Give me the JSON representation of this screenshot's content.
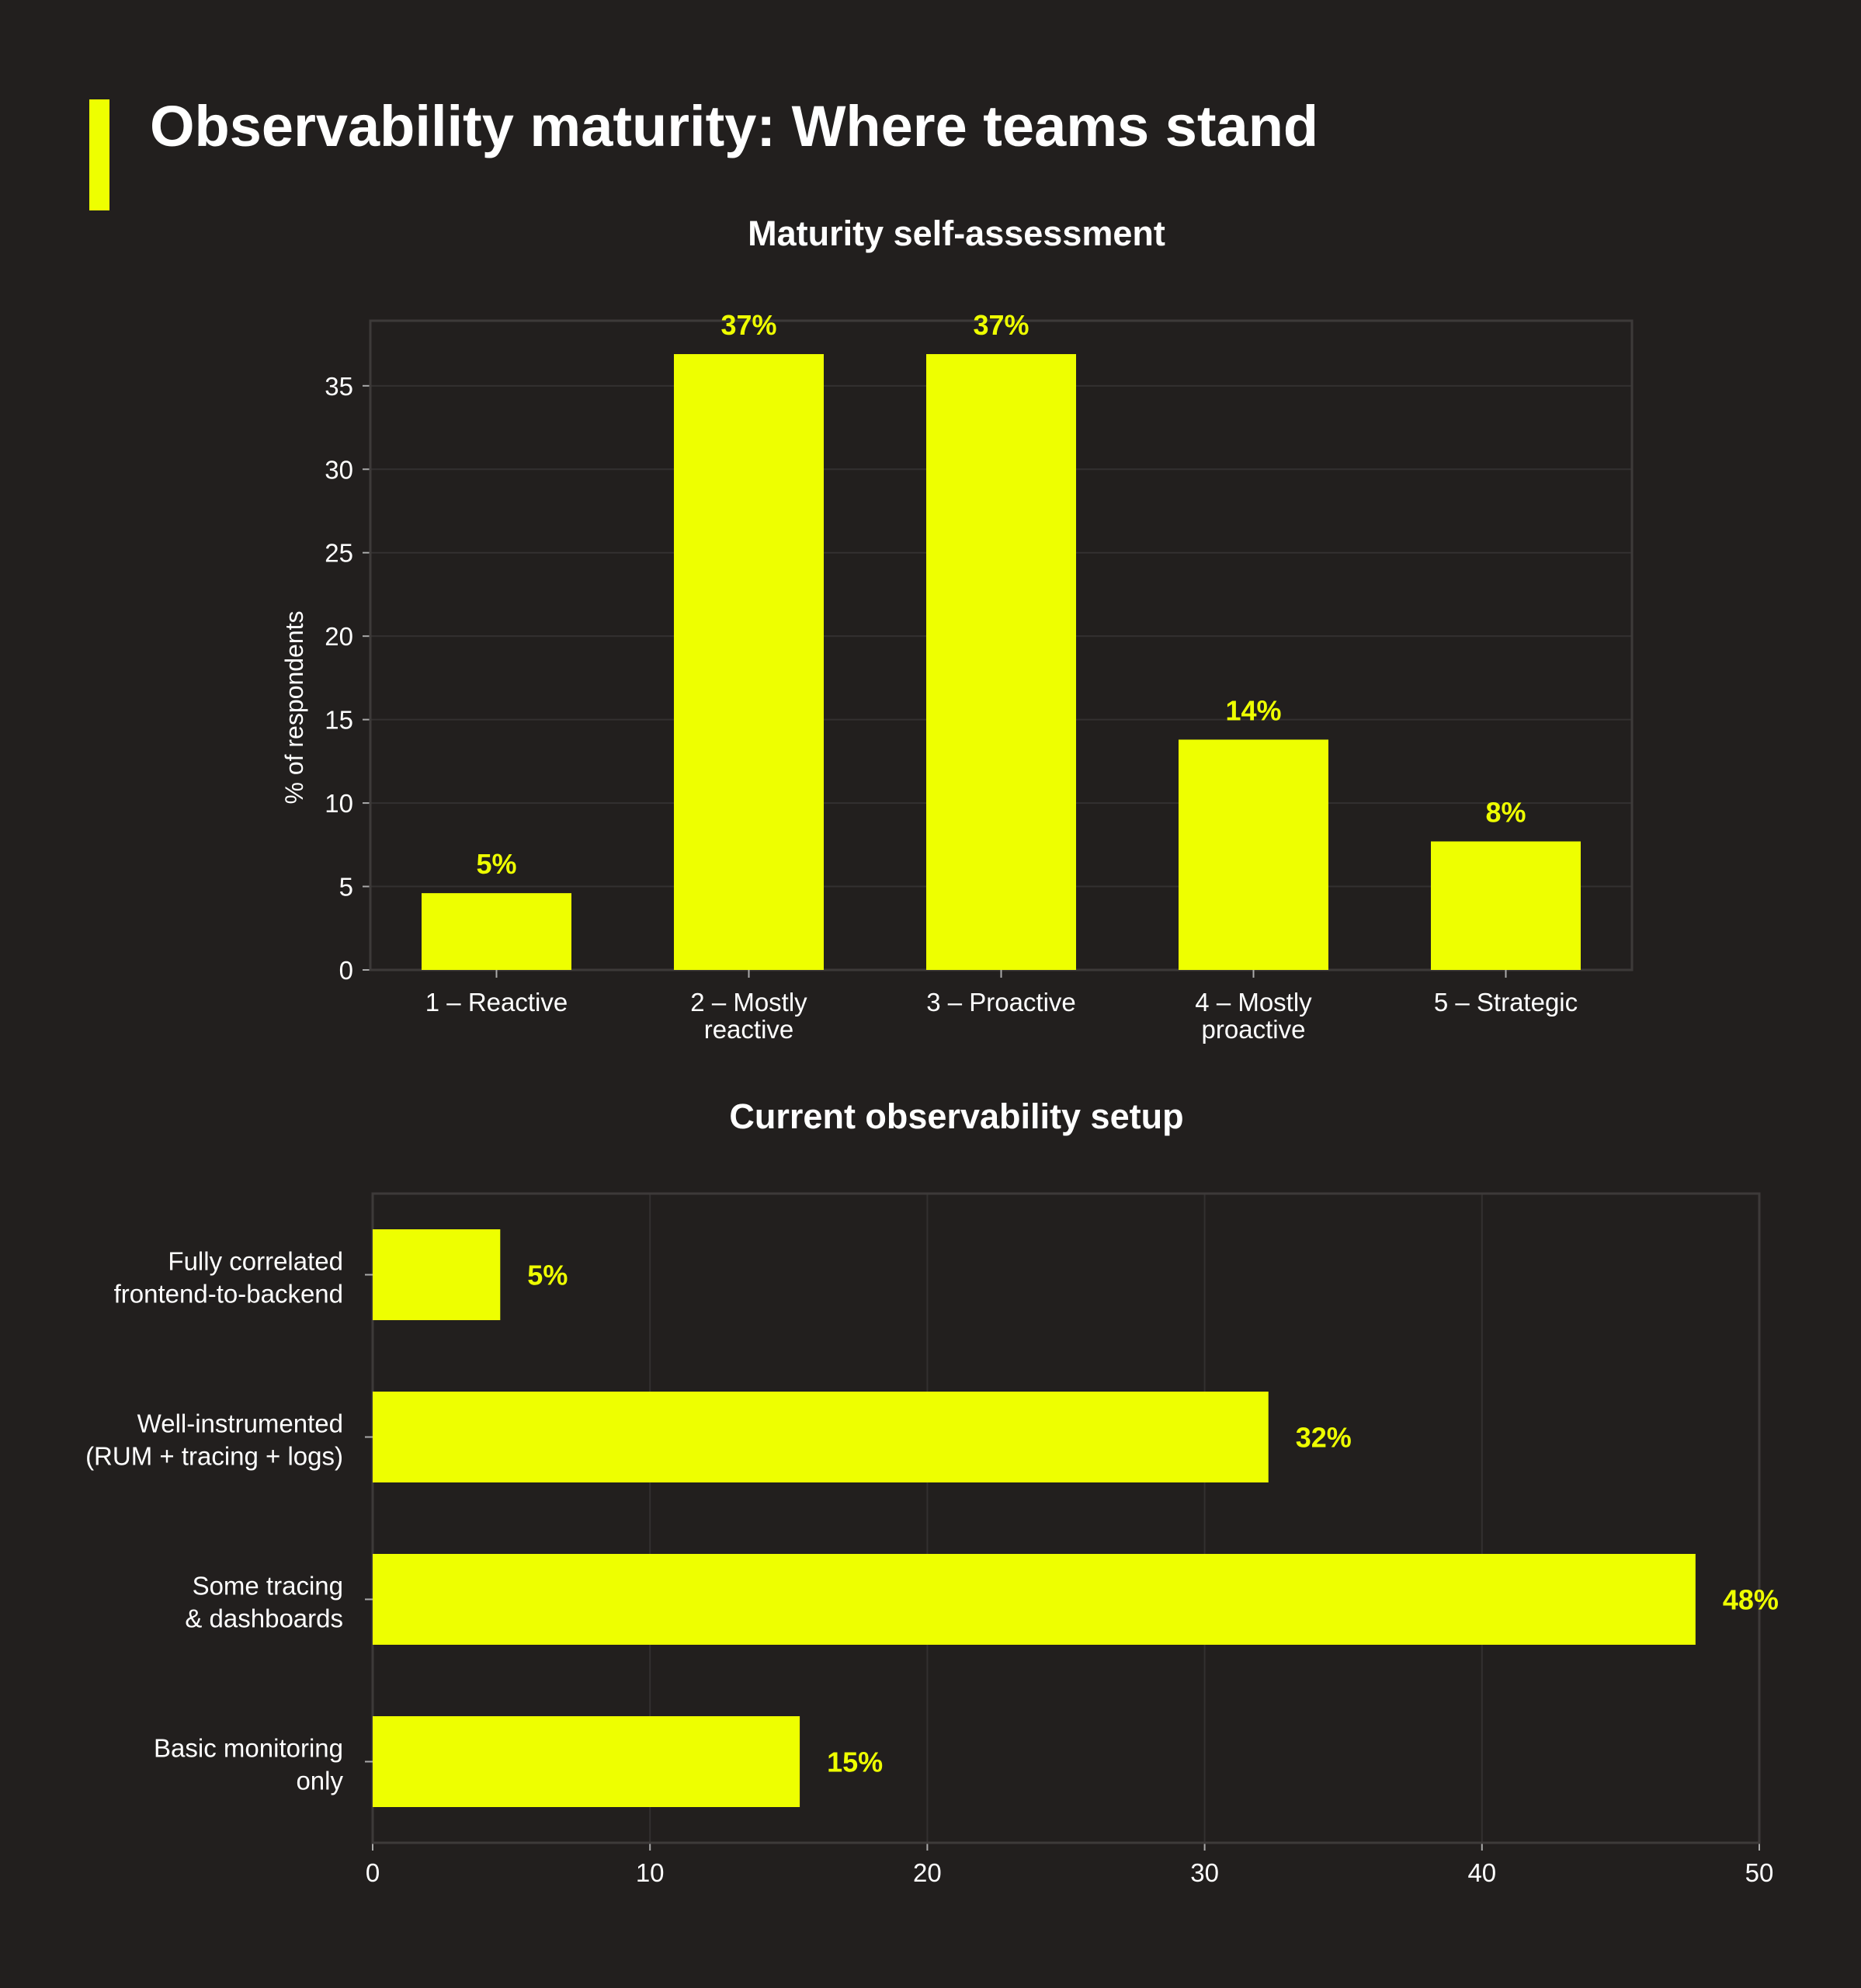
{
  "title": "Observability maturity: Where teams stand",
  "colors": {
    "background": "#221f1e",
    "accent": "#eeff00",
    "grid": "#333030",
    "text": "#ffffff"
  },
  "chart_data": [
    {
      "type": "bar",
      "title": "Maturity self-assessment",
      "xlabel": "",
      "ylabel": "% of respondents",
      "categories": [
        [
          "1 – Reactive"
        ],
        [
          "2 – Mostly",
          "reactive"
        ],
        [
          "3 – Proactive"
        ],
        [
          "4 – Mostly",
          "proactive"
        ],
        [
          "5 – Strategic"
        ]
      ],
      "values": [
        4.6,
        36.9,
        36.9,
        13.8,
        7.7
      ],
      "data_labels": [
        "5%",
        "37%",
        "37%",
        "14%",
        "8%"
      ],
      "ylim": [
        0,
        38.9
      ],
      "yticks": [
        0,
        5,
        10,
        15,
        20,
        25,
        30,
        35
      ],
      "grid": true
    },
    {
      "type": "bar",
      "orientation": "horizontal",
      "title": "Current observability setup",
      "xlabel": "",
      "ylabel": "",
      "categories": [
        [
          "Fully correlated",
          "frontend-to-backend"
        ],
        [
          "Well-instrumented",
          "(RUM + tracing + logs)"
        ],
        [
          "Some tracing",
          "& dashboards"
        ],
        [
          "Basic monitoring",
          "only"
        ]
      ],
      "values": [
        4.6,
        32.3,
        47.7,
        15.4
      ],
      "data_labels": [
        "5%",
        "32%",
        "48%",
        "15%"
      ],
      "xlim": [
        0,
        50
      ],
      "xticks": [
        0,
        10,
        20,
        30,
        40,
        50
      ],
      "grid": true
    }
  ]
}
